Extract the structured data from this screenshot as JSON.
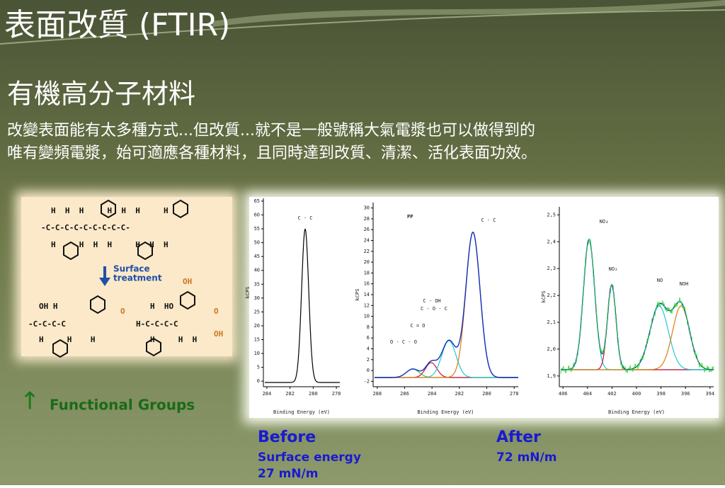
{
  "header": {
    "title": "表面改質 (FTIR)",
    "subtitle": "有機高分子材料"
  },
  "body": [
    "改變表面能有太多種方式...但改質...就不是一般號稱大氣電漿也可以做得到的",
    "唯有變頻電漿，始可適應各種材料，且同時達到改質、清潔、活化表面功效。"
  ],
  "molecule": {
    "rows": [
      "H  H  H     H  H  H     H",
      "-C-C-C-C-C-C-C-C-C-",
      "H     H  H  H     H  H  H",
      "OH H",
      "-C-C-C-C",
      "H     H    H",
      "H  HO",
      "H-C-C-C-C",
      "H     H  H"
    ],
    "labels": [
      "Surface",
      "treatment",
      "OH",
      "O",
      "OH",
      "O"
    ]
  },
  "legend": {
    "arrow": "↑",
    "text": "Functional Groups"
  },
  "spectra": [
    {
      "y_label": "kCPS",
      "x_label": "Binding Energy (eV)",
      "xlim": [
        284.3,
        277.7
      ],
      "ylim": [
        -2,
        66
      ],
      "xticks": [
        284,
        282,
        280,
        278
      ],
      "yticks": [
        0,
        5,
        10,
        15,
        20,
        25,
        30,
        35,
        40,
        45,
        50,
        55,
        60,
        65
      ],
      "peaks": [
        "C - C"
      ]
    },
    {
      "y_label": "kCPS",
      "x_label": "Binding Energy (eV)",
      "xlim": [
        288.3,
        277.7
      ],
      "ylim": [
        -3,
        31
      ],
      "xticks": [
        288,
        286,
        284,
        282,
        280,
        278
      ],
      "yticks": [
        -2,
        0,
        2,
        4,
        6,
        8,
        10,
        12,
        14,
        16,
        18,
        20,
        22,
        24,
        26,
        28,
        30
      ],
      "title": "PP",
      "peaks": [
        "C - C",
        "C - OH",
        "C - O - C",
        "C = O",
        "O - C - O"
      ]
    },
    {
      "y_label": "kCPS",
      "x_label": "Binding Energy (eV)",
      "xlim": [
        406.3,
        393.7
      ],
      "ylim": [
        1.86,
        2.53
      ],
      "xticks": [
        406,
        404,
        402,
        400,
        398,
        396,
        394
      ],
      "yticks": [
        {
          "value": 1.9,
          "label": "1,9"
        },
        {
          "value": 2.0,
          "label": "2,0"
        },
        {
          "value": 2.1,
          "label": "2,1"
        },
        {
          "value": 2.2,
          "label": "2,2"
        },
        {
          "value": 2.3,
          "label": "2,3"
        },
        {
          "value": 2.4,
          "label": "2,4"
        },
        {
          "value": 2.5,
          "label": "2,5"
        }
      ],
      "peaks": [
        "NO₃",
        "NO₂",
        "NO",
        "NOH"
      ]
    }
  ],
  "captions": {
    "before": "Before",
    "before_sub": "Surface energy",
    "before_value": "27 mN/m",
    "after": "After",
    "after_value": "72 mN/m"
  }
}
